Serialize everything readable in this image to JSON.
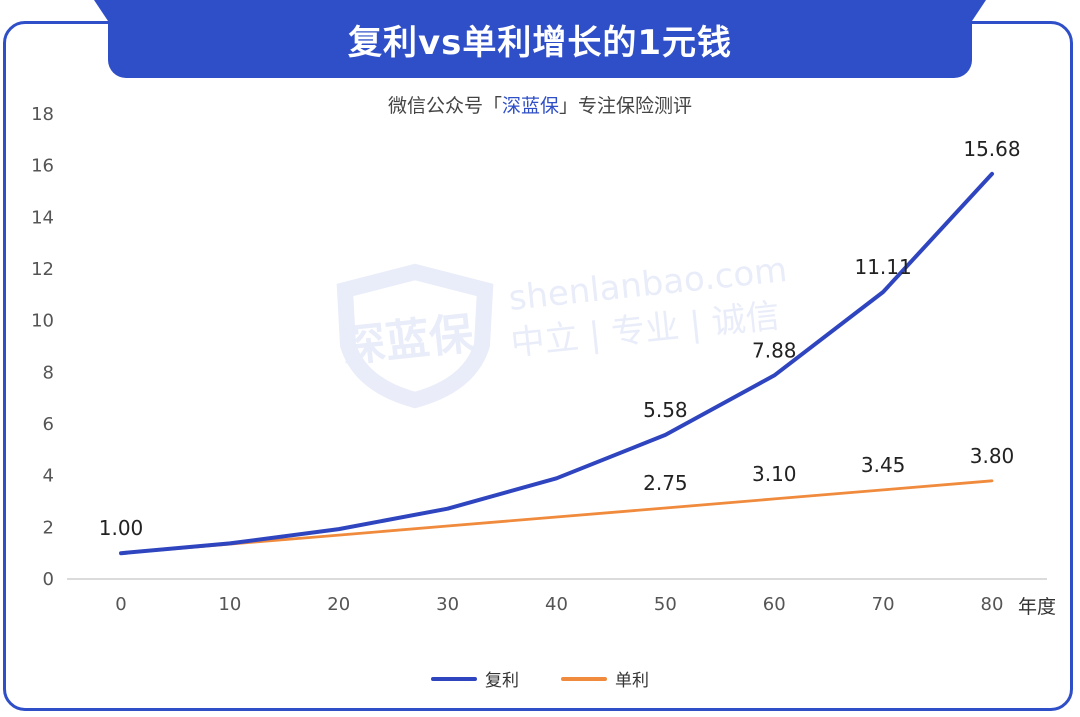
{
  "header": {
    "title": "复利vs单利增长的1元钱",
    "subtitle_prefix": "微信公众号「",
    "subtitle_brand": "深蓝保",
    "subtitle_suffix": "」专注保险测评"
  },
  "watermark": {
    "logo_text": "深蓝保",
    "site": "shenlanbao.com",
    "slogan": "中立 | 专业 | 诚信"
  },
  "colors": {
    "frame": "#2f4fc8",
    "compound": "#2f45c0",
    "simple": "#f08a3c"
  },
  "chart_data": {
    "type": "line",
    "title": "复利vs单利增长的1元钱",
    "xlabel": "年度",
    "ylabel": "",
    "x": [
      0,
      10,
      20,
      30,
      40,
      50,
      60,
      70,
      80
    ],
    "xlim": [
      0,
      80
    ],
    "ylim": [
      0,
      18
    ],
    "y_ticks": [
      0,
      2,
      4,
      6,
      8,
      10,
      12,
      14,
      16,
      18
    ],
    "grid": false,
    "legend_position": "bottom",
    "series": [
      {
        "name": "复利",
        "color": "#2f45c0",
        "values": [
          1.0,
          1.38,
          1.93,
          2.72,
          3.9,
          5.58,
          7.88,
          11.11,
          15.68
        ],
        "labels": {
          "0": "1.00",
          "5": "5.58",
          "6": "7.88",
          "7": "11.11",
          "8": "15.68"
        }
      },
      {
        "name": "单利",
        "color": "#f08a3c",
        "values": [
          1.0,
          1.35,
          1.7,
          2.05,
          2.4,
          2.75,
          3.1,
          3.45,
          3.8
        ],
        "labels": {
          "5": "2.75",
          "6": "3.10",
          "7": "3.45",
          "8": "3.80"
        }
      }
    ]
  }
}
